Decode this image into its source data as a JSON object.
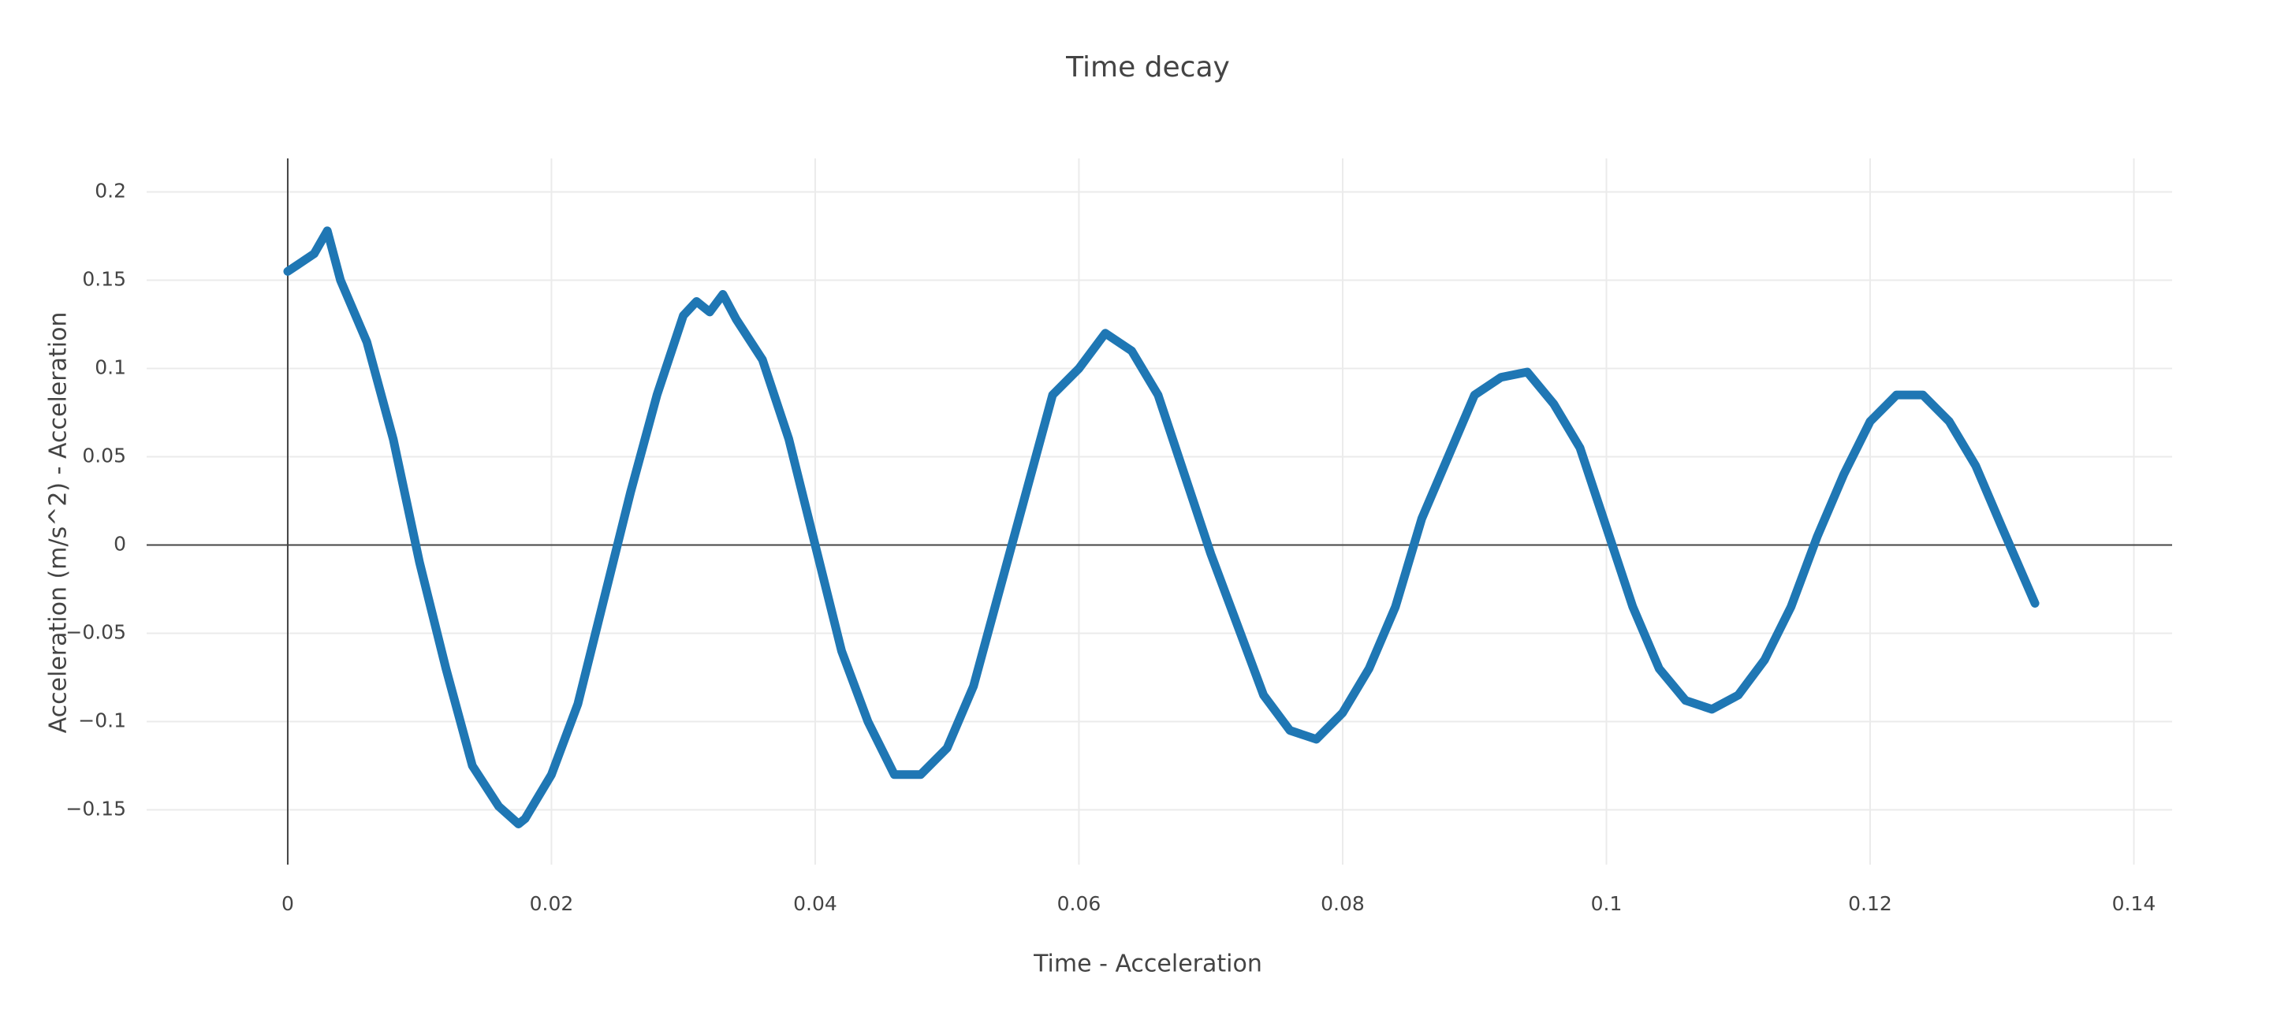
{
  "chart_data": {
    "type": "line",
    "title": "Time decay",
    "x_label": "Time - Acceleration",
    "y_label": "Acceleration (m/s^2) - Acceleration",
    "x": [
      0,
      0.002,
      0.003,
      0.004,
      0.006,
      0.008,
      0.01,
      0.012,
      0.014,
      0.016,
      0.0175,
      0.018,
      0.02,
      0.022,
      0.024,
      0.026,
      0.028,
      0.03,
      0.031,
      0.032,
      0.033,
      0.034,
      0.036,
      0.038,
      0.04,
      0.042,
      0.044,
      0.046,
      0.048,
      0.05,
      0.052,
      0.054,
      0.056,
      0.058,
      0.06,
      0.062,
      0.064,
      0.066,
      0.068,
      0.07,
      0.072,
      0.074,
      0.076,
      0.078,
      0.08,
      0.082,
      0.084,
      0.086,
      0.088,
      0.09,
      0.092,
      0.094,
      0.096,
      0.098,
      0.1,
      0.102,
      0.104,
      0.106,
      0.108,
      0.11,
      0.112,
      0.114,
      0.116,
      0.118,
      0.12,
      0.122,
      0.124,
      0.126,
      0.128,
      0.13,
      0.1325
    ],
    "series": [
      {
        "name": "Acceleration",
        "color": "#1f77b4",
        "values": [
          0.155,
          0.165,
          0.178,
          0.15,
          0.115,
          0.06,
          -0.01,
          -0.07,
          -0.125,
          -0.148,
          -0.158,
          -0.155,
          -0.13,
          -0.09,
          -0.03,
          0.03,
          0.085,
          0.13,
          0.138,
          0.132,
          0.142,
          0.128,
          0.105,
          0.06,
          0.0,
          -0.06,
          -0.1,
          -0.13,
          -0.13,
          -0.115,
          -0.08,
          -0.025,
          0.03,
          0.085,
          0.1,
          0.12,
          0.11,
          0.085,
          0.04,
          -0.005,
          -0.045,
          -0.085,
          -0.105,
          -0.11,
          -0.095,
          -0.07,
          -0.035,
          0.015,
          0.05,
          0.085,
          0.095,
          0.098,
          0.08,
          0.055,
          0.01,
          -0.035,
          -0.07,
          -0.088,
          -0.093,
          -0.085,
          -0.065,
          -0.035,
          0.005,
          0.04,
          0.07,
          0.085,
          0.085,
          0.07,
          0.045,
          0.01,
          -0.033
        ]
      }
    ],
    "xlim": [
      -0.0107,
      0.1429
    ],
    "xticks": [
      0,
      0.02,
      0.04,
      0.06,
      0.08,
      0.1,
      0.12,
      0.14
    ],
    "ylim": [
      -0.181,
      0.219
    ],
    "yticks": [
      {
        "value": -0.15,
        "label": "−0.15"
      },
      {
        "value": -0.1,
        "label": "−0.1"
      },
      {
        "value": -0.05,
        "label": "−0.05"
      },
      0,
      0.05,
      0.1,
      0.15,
      0.2
    ],
    "grid": true,
    "zeroline": true
  }
}
